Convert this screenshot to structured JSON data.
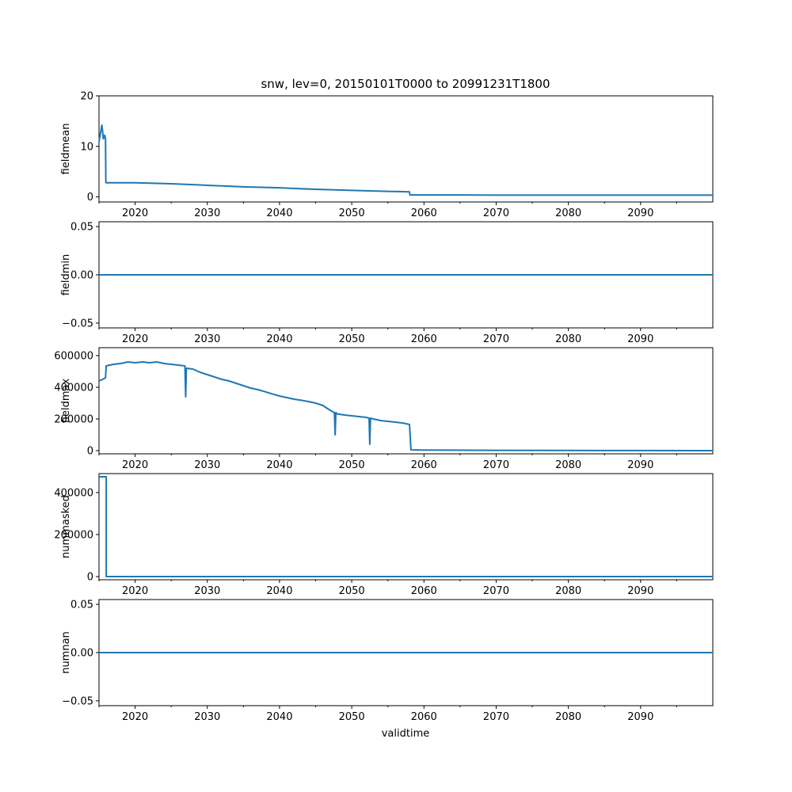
{
  "chart_data": {
    "type": "line",
    "title": "snw, lev=0, 20150101T0000 to 20991231T1800",
    "xlabel": "validtime",
    "xlim": [
      2015,
      2100
    ],
    "x_ticks": [
      2020,
      2030,
      2040,
      2050,
      2060,
      2070,
      2080,
      2090
    ],
    "x_tick_labels": [
      "2020",
      "2030",
      "2040",
      "2050",
      "2060",
      "2070",
      "2080",
      "2090"
    ],
    "color": "#1f77b4",
    "grid": false,
    "panels": [
      {
        "ylabel": "fieldmean",
        "ylim": [
          -1,
          20
        ],
        "yticks": [
          0,
          10,
          20
        ],
        "ytick_labels": [
          "0",
          "10",
          "20"
        ],
        "series": [
          {
            "x": [
              2015.0,
              2015.2,
              2015.4,
              2015.5,
              2015.6,
              2015.8,
              2015.9,
              2015.95,
              2016.0,
              2020,
              2025,
              2030,
              2035,
              2040,
              2045,
              2050,
              2055,
              2058.0,
              2058.05,
              2065,
              2070,
              2080,
              2090,
              2100
            ],
            "y": [
              11.0,
              12.5,
              14.2,
              13.0,
              11.5,
              12.2,
              11.5,
              2.9,
              2.8,
              2.8,
              2.6,
              2.3,
              2.0,
              1.8,
              1.5,
              1.3,
              1.1,
              1.0,
              0.4,
              0.4,
              0.35,
              0.35,
              0.35,
              0.35
            ]
          }
        ]
      },
      {
        "ylabel": "fieldmin",
        "ylim": [
          -0.055,
          0.055
        ],
        "yticks": [
          -0.05,
          0.0,
          0.05
        ],
        "ytick_labels": [
          "−0.05",
          "0.00",
          "0.05"
        ],
        "series": [
          {
            "x": [
              2015,
              2100
            ],
            "y": [
              0.0,
              0.0
            ]
          }
        ]
      },
      {
        "ylabel": "fieldmax",
        "ylim": [
          -20000,
          650000
        ],
        "yticks": [
          0,
          200000,
          400000,
          600000
        ],
        "ytick_labels": [
          "0",
          "200000",
          "400000",
          "600000"
        ],
        "series": [
          {
            "x": [
              2015.0,
              2015.5,
              2015.9,
              2016.0,
              2017,
              2018,
              2019,
              2020,
              2021,
              2022,
              2023,
              2024,
              2025,
              2026,
              2026.9,
              2027.0,
              2027.1,
              2028,
              2029,
              2030,
              2031,
              2032,
              2033,
              2034,
              2035,
              2036,
              2037,
              2038,
              2039,
              2040,
              2041,
              2042,
              2043,
              2044,
              2045,
              2046,
              2047,
              2047.6,
              2047.7,
              2047.8,
              2048,
              2049,
              2050,
              2051,
              2052,
              2052.4,
              2052.5,
              2052.6,
              2053,
              2054,
              2055,
              2056,
              2057,
              2058.0,
              2058.2,
              2060,
              2070,
              2080,
              2090,
              2100
            ],
            "y": [
              440000,
              450000,
              460000,
              535000,
              545000,
              550000,
              560000,
              555000,
              560000,
              555000,
              560000,
              550000,
              545000,
              540000,
              535000,
              340000,
              520000,
              515000,
              495000,
              480000,
              465000,
              450000,
              440000,
              425000,
              410000,
              395000,
              385000,
              372000,
              358000,
              345000,
              335000,
              325000,
              318000,
              310000,
              300000,
              285000,
              255000,
              240000,
              100000,
              240000,
              232000,
              225000,
              220000,
              215000,
              210000,
              205000,
              40000,
              205000,
              200000,
              190000,
              185000,
              180000,
              175000,
              165000,
              5000,
              4000,
              2000,
              1000,
              500,
              0
            ]
          }
        ]
      },
      {
        "ylabel": "nummasked",
        "ylim": [
          -15000,
          490000
        ],
        "yticks": [
          0,
          200000,
          400000
        ],
        "ytick_labels": [
          "0",
          "200000",
          "400000"
        ],
        "series": [
          {
            "x": [
              2015.0,
              2016.0,
              2016.0,
              2100
            ],
            "y": [
              475000,
              475000,
              0,
              0
            ]
          }
        ]
      },
      {
        "ylabel": "numnan",
        "ylim": [
          -0.055,
          0.055
        ],
        "yticks": [
          -0.05,
          0.0,
          0.05
        ],
        "ytick_labels": [
          "−0.05",
          "0.00",
          "0.05"
        ],
        "series": [
          {
            "x": [
              2015,
              2100
            ],
            "y": [
              0.0,
              0.0
            ]
          }
        ]
      }
    ]
  }
}
